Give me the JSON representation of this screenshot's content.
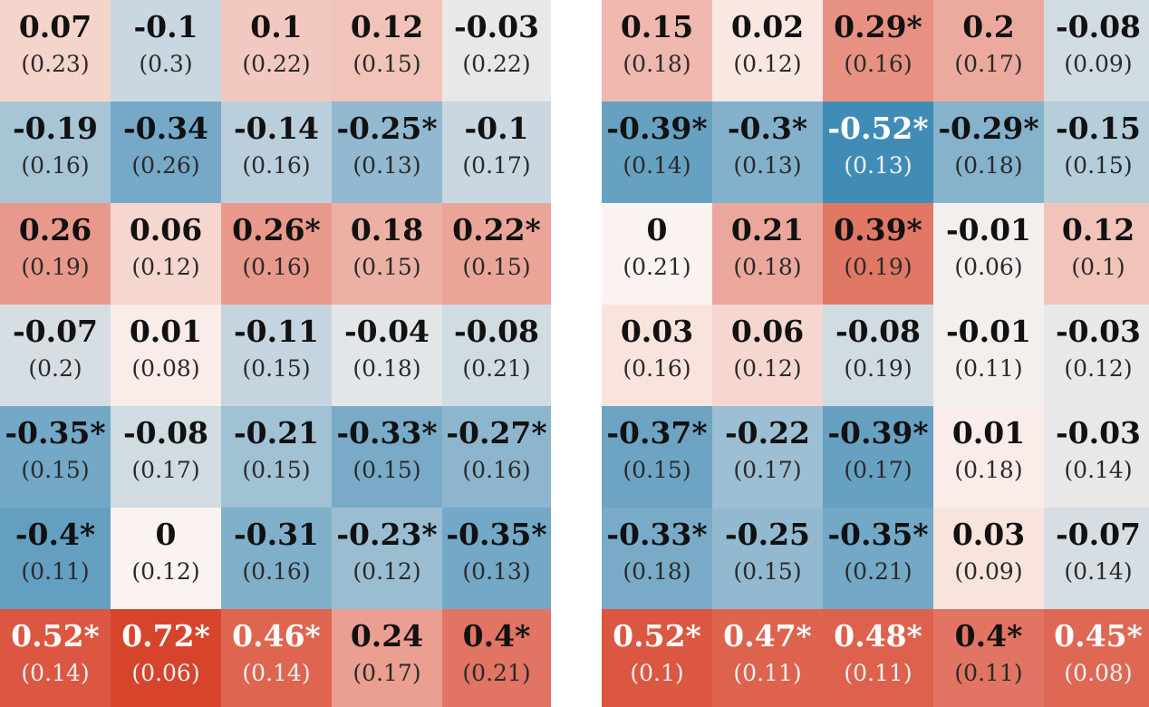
{
  "chart_data": [
    {
      "type": "heatmap",
      "value_format": "coefficient with standard error in parentheses; * marks significance",
      "color_scale": {
        "negative": "#2a7fb0",
        "neutral": "#fbf3ef",
        "positive": "#d7442c"
      },
      "rows": [
        [
          {
            "estimate": "0.07",
            "se": "(0.23)"
          },
          {
            "estimate": "-0.1",
            "se": "(0.3)"
          },
          {
            "estimate": "0.1",
            "se": "(0.22)"
          },
          {
            "estimate": "0.12",
            "se": "(0.15)"
          },
          {
            "estimate": "-0.03",
            "se": "(0.22)"
          }
        ],
        [
          {
            "estimate": "-0.19",
            "se": "(0.16)"
          },
          {
            "estimate": "-0.34",
            "se": "(0.26)"
          },
          {
            "estimate": "-0.14",
            "se": "(0.16)"
          },
          {
            "estimate": "-0.25*",
            "se": "(0.13)"
          },
          {
            "estimate": "-0.1",
            "se": "(0.17)"
          }
        ],
        [
          {
            "estimate": "0.26",
            "se": "(0.19)"
          },
          {
            "estimate": "0.06",
            "se": "(0.12)"
          },
          {
            "estimate": "0.26*",
            "se": "(0.16)"
          },
          {
            "estimate": "0.18",
            "se": "(0.15)"
          },
          {
            "estimate": "0.22*",
            "se": "(0.15)"
          }
        ],
        [
          {
            "estimate": "-0.07",
            "se": "(0.2)"
          },
          {
            "estimate": "0.01",
            "se": "(0.08)"
          },
          {
            "estimate": "-0.11",
            "se": "(0.15)"
          },
          {
            "estimate": "-0.04",
            "se": "(0.18)"
          },
          {
            "estimate": "-0.08",
            "se": "(0.21)"
          }
        ],
        [
          {
            "estimate": "-0.35*",
            "se": "(0.15)"
          },
          {
            "estimate": "-0.08",
            "se": "(0.17)"
          },
          {
            "estimate": "-0.21",
            "se": "(0.15)"
          },
          {
            "estimate": "-0.33*",
            "se": "(0.15)"
          },
          {
            "estimate": "-0.27*",
            "se": "(0.16)"
          }
        ],
        [
          {
            "estimate": "-0.4*",
            "se": "(0.11)"
          },
          {
            "estimate": "0",
            "se": "(0.12)"
          },
          {
            "estimate": "-0.31",
            "se": "(0.16)"
          },
          {
            "estimate": "-0.23*",
            "se": "(0.12)"
          },
          {
            "estimate": "-0.35*",
            "se": "(0.13)"
          }
        ],
        [
          {
            "estimate": "0.52*",
            "se": "(0.14)"
          },
          {
            "estimate": "0.72*",
            "se": "(0.06)"
          },
          {
            "estimate": "0.46*",
            "se": "(0.14)"
          },
          {
            "estimate": "0.24",
            "se": "(0.17)"
          },
          {
            "estimate": "0.4*",
            "se": "(0.21)"
          }
        ]
      ]
    },
    {
      "type": "heatmap",
      "value_format": "coefficient with standard error in parentheses; * marks significance",
      "color_scale": {
        "negative": "#2a7fb0",
        "neutral": "#fbf3ef",
        "positive": "#d7442c"
      },
      "rows": [
        [
          {
            "estimate": "0.15",
            "se": "(0.18)"
          },
          {
            "estimate": "0.02",
            "se": "(0.12)"
          },
          {
            "estimate": "0.29*",
            "se": "(0.16)"
          },
          {
            "estimate": "0.2",
            "se": "(0.17)"
          },
          {
            "estimate": "-0.08",
            "se": "(0.09)"
          }
        ],
        [
          {
            "estimate": "-0.39*",
            "se": "(0.14)"
          },
          {
            "estimate": "-0.3*",
            "se": "(0.13)"
          },
          {
            "estimate": "-0.52*",
            "se": "(0.13)"
          },
          {
            "estimate": "-0.29*",
            "se": "(0.18)"
          },
          {
            "estimate": "-0.15",
            "se": "(0.15)"
          }
        ],
        [
          {
            "estimate": "0",
            "se": "(0.21)"
          },
          {
            "estimate": "0.21",
            "se": "(0.18)"
          },
          {
            "estimate": "0.39*",
            "se": "(0.19)"
          },
          {
            "estimate": "-0.01",
            "se": "(0.06)"
          },
          {
            "estimate": "0.12",
            "se": "(0.1)"
          }
        ],
        [
          {
            "estimate": "0.03",
            "se": "(0.16)"
          },
          {
            "estimate": "0.06",
            "se": "(0.12)"
          },
          {
            "estimate": "-0.08",
            "se": "(0.19)"
          },
          {
            "estimate": "-0.01",
            "se": "(0.11)"
          },
          {
            "estimate": "-0.03",
            "se": "(0.12)"
          }
        ],
        [
          {
            "estimate": "-0.37*",
            "se": "(0.15)"
          },
          {
            "estimate": "-0.22",
            "se": "(0.17)"
          },
          {
            "estimate": "-0.39*",
            "se": "(0.17)"
          },
          {
            "estimate": "0.01",
            "se": "(0.18)"
          },
          {
            "estimate": "-0.03",
            "se": "(0.14)"
          }
        ],
        [
          {
            "estimate": "-0.33*",
            "se": "(0.18)"
          },
          {
            "estimate": "-0.25",
            "se": "(0.15)"
          },
          {
            "estimate": "-0.35*",
            "se": "(0.21)"
          },
          {
            "estimate": "0.03",
            "se": "(0.09)"
          },
          {
            "estimate": "-0.07",
            "se": "(0.14)"
          }
        ],
        [
          {
            "estimate": "0.52*",
            "se": "(0.1)"
          },
          {
            "estimate": "0.47*",
            "se": "(0.11)"
          },
          {
            "estimate": "0.48*",
            "se": "(0.11)"
          },
          {
            "estimate": "0.4*",
            "se": "(0.11)"
          },
          {
            "estimate": "0.45*",
            "se": "(0.08)"
          }
        ]
      ]
    }
  ]
}
